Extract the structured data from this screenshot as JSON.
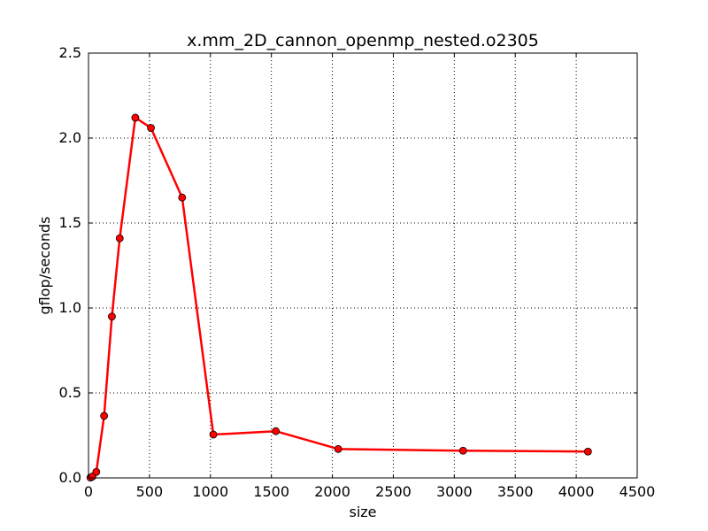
{
  "chart_data": {
    "type": "line",
    "title": "x.mm_2D_cannon_openmp_nested.o2305",
    "xlabel": "size",
    "ylabel": "gflop/seconds",
    "xlim": [
      0,
      4500
    ],
    "ylim": [
      0,
      2.5
    ],
    "xticks": [
      0,
      500,
      1000,
      1500,
      2000,
      2500,
      3000,
      3500,
      4000,
      4500
    ],
    "xtick_labels": [
      "0",
      "500",
      "1000",
      "1500",
      "2000",
      "2500",
      "3000",
      "3500",
      "4000",
      "4500"
    ],
    "yticks": [
      0,
      0.5,
      1,
      1.5,
      2,
      2.5
    ],
    "ytick_labels": [
      "0.0",
      "0.5",
      "1.0",
      "1.5",
      "2.0",
      "2.5"
    ],
    "grid": true,
    "series": [
      {
        "color": "#ff0000",
        "marker_color": "#ff0000",
        "x": [
          16,
          32,
          64,
          128,
          192,
          256,
          384,
          512,
          768,
          1024,
          1536,
          2048,
          3072,
          4096
        ],
        "y": [
          0.002,
          0.008,
          0.035,
          0.365,
          0.95,
          1.41,
          2.12,
          2.06,
          1.65,
          0.255,
          0.275,
          0.17,
          0.16,
          0.155
        ]
      }
    ]
  }
}
